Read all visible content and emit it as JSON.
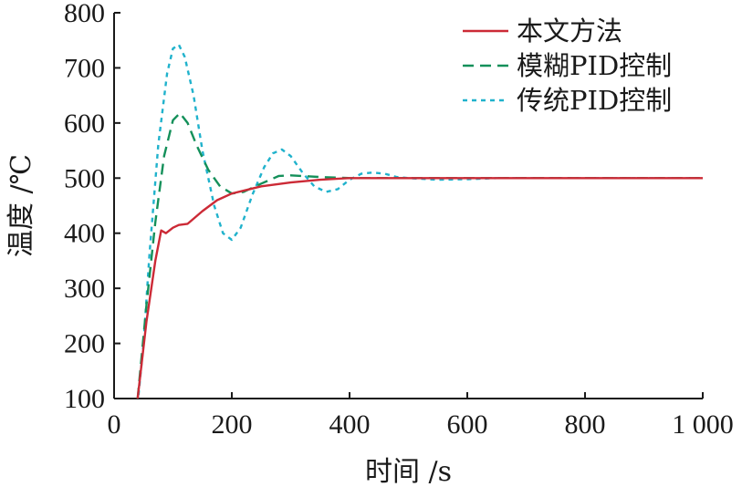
{
  "chart_data": {
    "type": "line",
    "xlabel": "时间 /s",
    "ylabel": "温度 /℃",
    "xlim": [
      0,
      1000
    ],
    "ylim": [
      100,
      800
    ],
    "xticks": [
      0,
      200,
      400,
      600,
      800,
      1000
    ],
    "xtick_labels": [
      "0",
      "200",
      "400",
      "600",
      "800",
      "1 000"
    ],
    "yticks": [
      100,
      200,
      300,
      400,
      500,
      600,
      700,
      800
    ],
    "ytick_labels": [
      "100",
      "200",
      "300",
      "400",
      "500",
      "600",
      "700",
      "800"
    ],
    "grid": false,
    "legend": "top-right",
    "series": [
      {
        "name": "本文方法",
        "color": "#cc2a36",
        "dash": "solid",
        "x": [
          40,
          55,
          70,
          80,
          88,
          100,
          110,
          125,
          150,
          175,
          200,
          250,
          300,
          350,
          400,
          500,
          600,
          700,
          800,
          900,
          1000
        ],
        "y": [
          100,
          240,
          350,
          405,
          400,
          410,
          415,
          417,
          440,
          460,
          472,
          485,
          492,
          497,
          500,
          500,
          500,
          500,
          500,
          500,
          500
        ]
      },
      {
        "name": "模糊PID控制",
        "color": "#14905a",
        "dash": "dashed",
        "x": [
          40,
          55,
          70,
          85,
          100,
          112,
          125,
          140,
          160,
          180,
          200,
          220,
          250,
          280,
          300,
          350,
          400,
          500,
          600,
          700,
          800,
          900,
          1000
        ],
        "y": [
          100,
          270,
          420,
          540,
          605,
          618,
          600,
          560,
          515,
          485,
          472,
          475,
          490,
          504,
          505,
          502,
          500,
          500,
          500,
          500,
          500,
          500,
          500
        ]
      },
      {
        "name": "传统PID控制",
        "color": "#20b2cc",
        "dash": "dotted",
        "x": [
          40,
          50,
          60,
          75,
          90,
          100,
          110,
          120,
          135,
          150,
          170,
          185,
          200,
          215,
          235,
          255,
          270,
          285,
          300,
          320,
          340,
          360,
          380,
          400,
          420,
          440,
          460,
          480,
          500,
          550,
          600,
          650,
          700,
          800,
          900,
          1000
        ],
        "y": [
          90,
          200,
          360,
          560,
          690,
          735,
          742,
          720,
          650,
          550,
          450,
          400,
          388,
          410,
          470,
          520,
          545,
          552,
          540,
          510,
          485,
          475,
          480,
          497,
          508,
          510,
          508,
          502,
          500,
          497,
          498,
          500,
          500,
          500,
          500,
          500
        ]
      }
    ]
  }
}
